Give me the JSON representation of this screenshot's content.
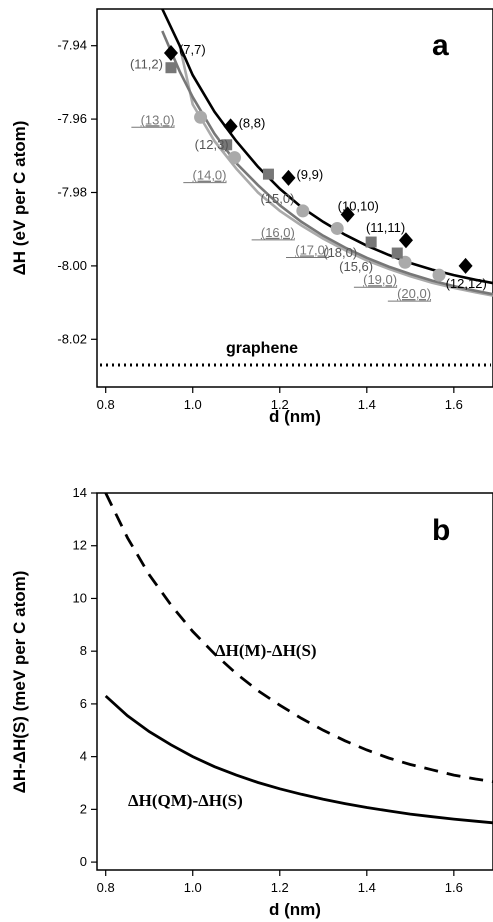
{
  "chart_data": [
    {
      "type": "line",
      "panel": "a",
      "xlabel": "d (nm)",
      "ylabel": "ΔH (eV per C atom)",
      "xlim": [
        0.78,
        1.69
      ],
      "ylim": [
        -8.033,
        -7.93
      ],
      "x_ticks": [
        0.8,
        1.0,
        1.2,
        1.4,
        1.6
      ],
      "x_tick_labels": [
        "0.8",
        "1.0",
        "1.2",
        "1.4",
        "1.6"
      ],
      "y_ticks": [
        -8.02,
        -8.0,
        -7.98,
        -7.96,
        -7.94
      ],
      "y_tick_labels": [
        "-8.02",
        "-8.00",
        "-7.98",
        "-7.96",
        "-7.94"
      ],
      "graphene_label": "graphene",
      "graphene_value": -8.027,
      "colors": {
        "armchair": "#000000",
        "chiral": "#777777",
        "zigzag": "#aaaaaa"
      },
      "series": [
        {
          "group": "armchair",
          "marker": "diamond",
          "curve": [
            [
              0.93,
              -7.93
            ],
            [
              0.97,
              -7.94
            ],
            [
              1.0,
              -7.948
            ],
            [
              1.05,
              -7.958
            ],
            [
              1.1,
              -7.966
            ],
            [
              1.15,
              -7.973
            ],
            [
              1.2,
              -7.979
            ],
            [
              1.25,
              -7.984
            ],
            [
              1.3,
              -7.988
            ],
            [
              1.35,
              -7.9915
            ],
            [
              1.4,
              -7.9945
            ],
            [
              1.45,
              -7.997
            ],
            [
              1.5,
              -7.9992
            ],
            [
              1.55,
              -8.001
            ],
            [
              1.6,
              -8.0025
            ],
            [
              1.65,
              -8.0038
            ],
            [
              1.69,
              -8.0047
            ]
          ],
          "points": [
            {
              "x": 0.95,
              "y": -7.942,
              "label": "(7,7)"
            },
            {
              "x": 1.087,
              "y": -7.962,
              "label": "(8,8)"
            },
            {
              "x": 1.22,
              "y": -7.976,
              "label": "(9,9)"
            },
            {
              "x": 1.356,
              "y": -7.986,
              "label": "(10,10)"
            },
            {
              "x": 1.49,
              "y": -7.993,
              "label": "(11,11)"
            },
            {
              "x": 1.627,
              "y": -8.0,
              "label": "(12,12)"
            }
          ]
        },
        {
          "group": "chiral",
          "marker": "square",
          "curve": [
            [
              0.93,
              -7.936
            ],
            [
              0.97,
              -7.947
            ],
            [
              1.0,
              -7.954
            ],
            [
              1.05,
              -7.964
            ],
            [
              1.1,
              -7.972
            ],
            [
              1.15,
              -7.978
            ],
            [
              1.2,
              -7.9835
            ],
            [
              1.25,
              -7.988
            ],
            [
              1.3,
              -7.9918
            ],
            [
              1.35,
              -7.995
            ],
            [
              1.4,
              -7.9978
            ],
            [
              1.45,
              -8.0002
            ],
            [
              1.5,
              -8.0022
            ],
            [
              1.55,
              -8.004
            ],
            [
              1.6,
              -8.0055
            ],
            [
              1.65,
              -8.0068
            ],
            [
              1.69,
              -8.0077
            ]
          ],
          "points": [
            {
              "x": 0.95,
              "y": -7.946,
              "label": "(11,2)"
            },
            {
              "x": 1.078,
              "y": -7.967,
              "label": "(12,3)"
            },
            {
              "x": 1.174,
              "y": -7.975,
              "label": "(15,0)"
            },
            {
              "x": 1.41,
              "y": -7.9935,
              "label": "(15,6)"
            },
            {
              "x": 1.47,
              "y": -7.9965,
              "label": "(18,0)"
            }
          ]
        },
        {
          "group": "zigzag",
          "marker": "circle",
          "curve": [
            [
              0.97,
              -7.94
            ],
            [
              1.0,
              -7.956
            ],
            [
              1.05,
              -7.966
            ],
            [
              1.1,
              -7.9735
            ],
            [
              1.15,
              -7.98
            ],
            [
              1.2,
              -7.985
            ],
            [
              1.25,
              -7.989
            ],
            [
              1.3,
              -7.9926
            ],
            [
              1.35,
              -7.9957
            ],
            [
              1.4,
              -7.9985
            ],
            [
              1.45,
              -8.0008
            ],
            [
              1.5,
              -8.0028
            ],
            [
              1.55,
              -8.0046
            ],
            [
              1.6,
              -8.006
            ],
            [
              1.65,
              -8.0072
            ],
            [
              1.69,
              -8.0081
            ]
          ],
          "points": [
            {
              "x": 1.018,
              "y": -7.9595,
              "label": "(13,0)"
            },
            {
              "x": 1.096,
              "y": -7.9705,
              "label": "(14,0)"
            },
            {
              "x": 1.253,
              "y": -7.985,
              "label": "(16,0)"
            },
            {
              "x": 1.332,
              "y": -7.9898,
              "label": "(17,0)"
            },
            {
              "x": 1.488,
              "y": -7.999,
              "label": "(19,0)"
            },
            {
              "x": 1.566,
              "y": -8.0025,
              "label": "(20,0)"
            }
          ]
        }
      ]
    },
    {
      "type": "line",
      "panel": "b",
      "xlabel": "d (nm)",
      "ylabel": "ΔH-ΔH(S) (meV per C atom)",
      "xlim": [
        0.78,
        1.69
      ],
      "ylim": [
        -0.3,
        14.0
      ],
      "x_ticks": [
        0.8,
        1.0,
        1.2,
        1.4,
        1.6
      ],
      "x_tick_labels": [
        "0.8",
        "1.0",
        "1.2",
        "1.4",
        "1.6"
      ],
      "y_ticks": [
        0,
        2,
        4,
        6,
        8,
        10,
        12,
        14
      ],
      "y_tick_labels": [
        "0",
        "2",
        "4",
        "6",
        "8",
        "10",
        "12",
        "14"
      ],
      "series": [
        {
          "label": "ΔH(M)-ΔH(S)",
          "style": "dashed",
          "points": [
            [
              0.8,
              14.0
            ],
            [
              0.85,
              12.3
            ],
            [
              0.9,
              10.9
            ],
            [
              0.95,
              9.75
            ],
            [
              1.0,
              8.75
            ],
            [
              1.05,
              7.9
            ],
            [
              1.1,
              7.15
            ],
            [
              1.15,
              6.5
            ],
            [
              1.2,
              5.95
            ],
            [
              1.25,
              5.45
            ],
            [
              1.3,
              5.0
            ],
            [
              1.35,
              4.6
            ],
            [
              1.4,
              4.25
            ],
            [
              1.45,
              3.95
            ],
            [
              1.5,
              3.7
            ],
            [
              1.55,
              3.5
            ],
            [
              1.6,
              3.3
            ],
            [
              1.65,
              3.15
            ],
            [
              1.69,
              3.05
            ]
          ]
        },
        {
          "label": "ΔH(QM)-ΔH(S)",
          "style": "solid",
          "points": [
            [
              0.8,
              6.3
            ],
            [
              0.85,
              5.55
            ],
            [
              0.9,
              4.95
            ],
            [
              0.95,
              4.45
            ],
            [
              1.0,
              4.0
            ],
            [
              1.05,
              3.62
            ],
            [
              1.1,
              3.3
            ],
            [
              1.15,
              3.02
            ],
            [
              1.2,
              2.78
            ],
            [
              1.25,
              2.57
            ],
            [
              1.3,
              2.38
            ],
            [
              1.35,
              2.22
            ],
            [
              1.4,
              2.07
            ],
            [
              1.45,
              1.94
            ],
            [
              1.5,
              1.82
            ],
            [
              1.55,
              1.72
            ],
            [
              1.6,
              1.63
            ],
            [
              1.65,
              1.55
            ],
            [
              1.69,
              1.49
            ]
          ]
        }
      ]
    }
  ]
}
